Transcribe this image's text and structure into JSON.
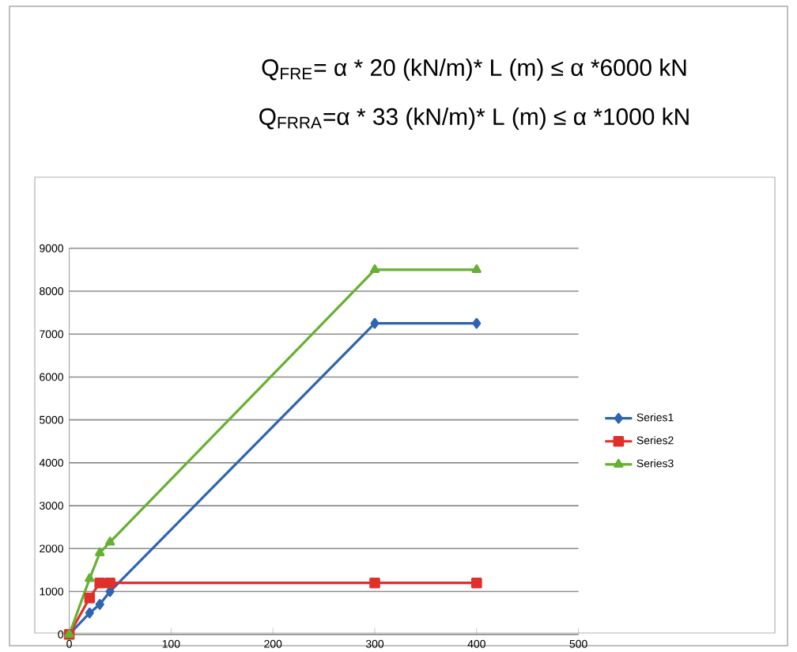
{
  "chart_data": {
    "type": "line",
    "title": "Q$_{FRE}$= α * 20 (kN/m)* L (m) ≤ α *6000 kN",
    "subtitle": "Q$_{FRRA}$=α * 33 (kN/m)* L (m) ≤ α *1000 kN",
    "x": [
      0,
      20,
      30,
      40,
      300,
      400
    ],
    "series": [
      {
        "name": "Series1",
        "color": "#2e64b0",
        "marker": "diamond",
        "values": [
          0,
          500,
          700,
          1000,
          7250,
          7250
        ]
      },
      {
        "name": "Series2",
        "color": "#e0302a",
        "marker": "square",
        "values": [
          0,
          850,
          1200,
          1200,
          1200,
          1200
        ]
      },
      {
        "name": "Series3",
        "color": "#66b032",
        "marker": "triangle",
        "values": [
          0,
          1300,
          1900,
          2150,
          8500,
          8500
        ]
      }
    ],
    "xlim": [
      0,
      500
    ],
    "xticks": [
      0,
      100,
      200,
      300,
      400,
      500
    ],
    "ylim": [
      0,
      9000
    ],
    "yticks": [
      0,
      1000,
      2000,
      3000,
      4000,
      5000,
      6000,
      7000,
      8000,
      9000
    ],
    "grid": "y",
    "legend": "right"
  }
}
